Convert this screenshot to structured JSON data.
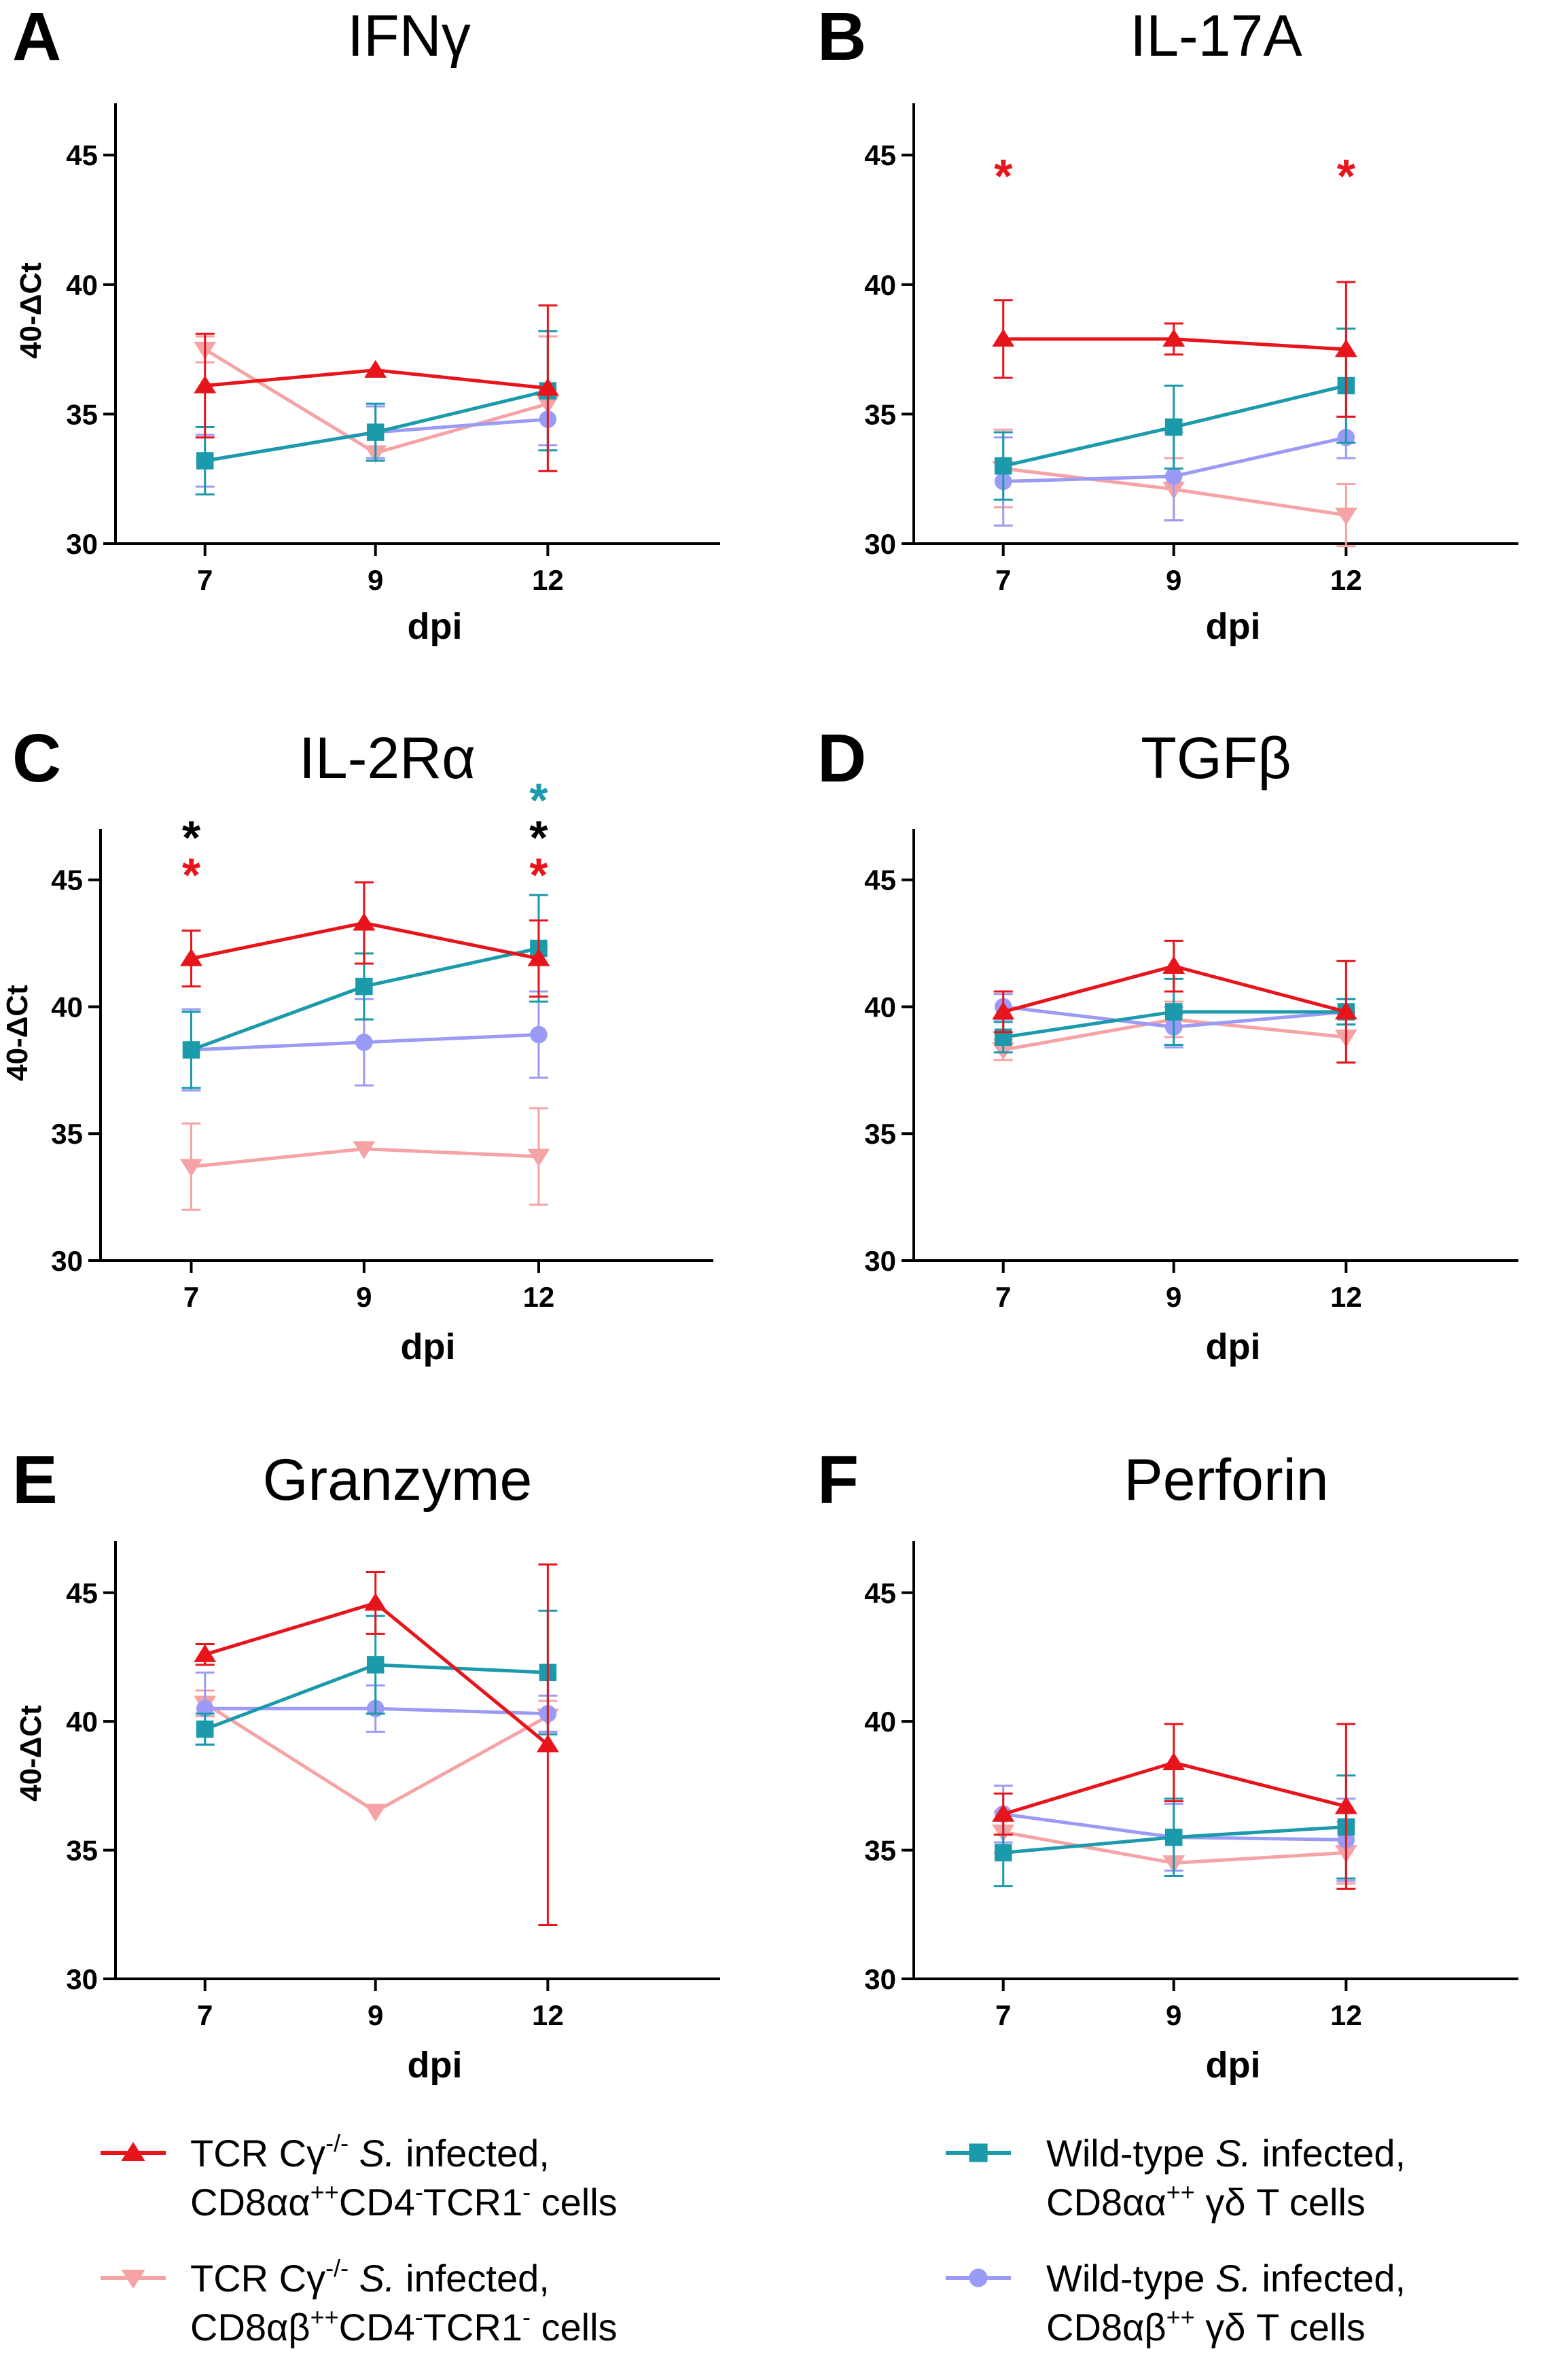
{
  "colors": {
    "s1": "#e8141b",
    "s2": "#f6a3a6",
    "s3": "#1a9aaa",
    "s4": "#9b9bf5"
  },
  "chart_data": [
    {
      "type": "line",
      "letter": "A",
      "title": "IFNγ",
      "xlabel": "dpi",
      "ylabel": "40-ΔCt",
      "categories": [
        "7",
        "9",
        "12"
      ],
      "ylim": [
        30,
        47
      ],
      "yticks": [
        "30",
        "35",
        "40",
        "45"
      ],
      "series": [
        {
          "name": "s1",
          "values": [
            36.1,
            36.7,
            36.0
          ],
          "err": [
            2.0,
            0.0,
            3.2
          ]
        },
        {
          "name": "s2",
          "values": [
            37.5,
            33.5,
            35.4
          ],
          "err": [
            0.5,
            0.0,
            2.6
          ]
        },
        {
          "name": "s3",
          "values": [
            33.2,
            34.3,
            35.9
          ],
          "err": [
            1.3,
            1.1,
            2.3
          ]
        },
        {
          "name": "s4",
          "values": [
            33.2,
            34.3,
            34.8
          ],
          "err": [
            1.0,
            1.0,
            1.0
          ]
        }
      ],
      "stars": []
    },
    {
      "type": "line",
      "letter": "B",
      "title": "IL-17A",
      "xlabel": "dpi",
      "ylabel": "",
      "categories": [
        "7",
        "9",
        "12"
      ],
      "ylim": [
        30,
        47
      ],
      "yticks": [
        "30",
        "35",
        "40",
        "45"
      ],
      "series": [
        {
          "name": "s1",
          "values": [
            37.9,
            37.9,
            37.5
          ],
          "err": [
            1.5,
            0.6,
            2.6
          ]
        },
        {
          "name": "s2",
          "values": [
            32.9,
            32.1,
            31.1
          ],
          "err": [
            1.5,
            1.2,
            1.2
          ]
        },
        {
          "name": "s3",
          "values": [
            33.0,
            34.5,
            36.1
          ],
          "err": [
            1.3,
            1.6,
            2.2
          ]
        },
        {
          "name": "s4",
          "values": [
            32.4,
            32.6,
            34.1
          ],
          "err": [
            1.7,
            1.7,
            0.8
          ]
        }
      ],
      "stars": [
        {
          "cat": 0,
          "color": "s1",
          "text": "*"
        },
        {
          "cat": 2,
          "color": "s1",
          "text": "*"
        }
      ]
    },
    {
      "type": "line",
      "letter": "C",
      "title": "IL-2Rα",
      "xlabel": "dpi",
      "ylabel": "40-ΔCt",
      "categories": [
        "7",
        "9",
        "12"
      ],
      "ylim": [
        30,
        47
      ],
      "yticks": [
        "30",
        "35",
        "40",
        "45"
      ],
      "series": [
        {
          "name": "s1",
          "values": [
            41.9,
            43.3,
            41.9
          ],
          "err": [
            1.1,
            1.6,
            1.5
          ]
        },
        {
          "name": "s2",
          "values": [
            33.7,
            34.4,
            34.1
          ],
          "err": [
            1.7,
            0.0,
            1.9
          ]
        },
        {
          "name": "s3",
          "values": [
            38.3,
            40.8,
            42.3
          ],
          "err": [
            1.5,
            1.3,
            2.1
          ]
        },
        {
          "name": "s4",
          "values": [
            38.3,
            38.6,
            38.9
          ],
          "err": [
            1.6,
            1.7,
            1.7
          ]
        }
      ],
      "stars": [
        {
          "cat": 0,
          "color": "black",
          "text": "*"
        },
        {
          "cat": 0,
          "color": "s1",
          "text": "*"
        },
        {
          "cat": 2,
          "color": "s3",
          "text": "*"
        },
        {
          "cat": 2,
          "color": "black",
          "text": "*"
        },
        {
          "cat": 2,
          "color": "s1",
          "text": "*"
        }
      ]
    },
    {
      "type": "line",
      "letter": "D",
      "title": "TGFβ",
      "xlabel": "dpi",
      "ylabel": "",
      "categories": [
        "7",
        "9",
        "12"
      ],
      "ylim": [
        30,
        47
      ],
      "yticks": [
        "30",
        "35",
        "40",
        "45"
      ],
      "series": [
        {
          "name": "s1",
          "values": [
            39.8,
            41.6,
            39.8
          ],
          "err": [
            0.8,
            1.0,
            2.0
          ]
        },
        {
          "name": "s2",
          "values": [
            38.3,
            39.5,
            38.8
          ],
          "err": [
            0.4,
            0.7,
            1.0
          ]
        },
        {
          "name": "s3",
          "values": [
            38.8,
            39.8,
            39.8
          ],
          "err": [
            0.6,
            1.3,
            0.5
          ]
        },
        {
          "name": "s4",
          "values": [
            40.0,
            39.2,
            39.8
          ],
          "err": [
            0.5,
            0.8,
            0.5
          ]
        }
      ],
      "stars": []
    },
    {
      "type": "line",
      "letter": "E",
      "title": "Granzyme",
      "xlabel": "dpi",
      "ylabel": "40-ΔCt",
      "categories": [
        "7",
        "9",
        "12"
      ],
      "ylim": [
        30,
        47
      ],
      "yticks": [
        "30",
        "35",
        "40",
        "45"
      ],
      "series": [
        {
          "name": "s1",
          "values": [
            42.6,
            44.6,
            39.1
          ],
          "err": [
            0.4,
            1.2,
            7.0
          ]
        },
        {
          "name": "s2",
          "values": [
            40.7,
            36.5,
            40.2
          ],
          "err": [
            0.5,
            0.0,
            0.6
          ]
        },
        {
          "name": "s3",
          "values": [
            39.7,
            42.2,
            41.9
          ],
          "err": [
            0.6,
            1.9,
            2.4
          ]
        },
        {
          "name": "s4",
          "values": [
            40.5,
            40.5,
            40.3
          ],
          "err": [
            1.4,
            0.9,
            0.7
          ]
        }
      ],
      "stars": []
    },
    {
      "type": "line",
      "letter": "F",
      "title": "Perforin",
      "xlabel": "dpi",
      "ylabel": "",
      "categories": [
        "7",
        "9",
        "12"
      ],
      "ylim": [
        30,
        47
      ],
      "yticks": [
        "30",
        "35",
        "40",
        "45"
      ],
      "series": [
        {
          "name": "s1",
          "values": [
            36.4,
            38.4,
            36.7
          ],
          "err": [
            0.8,
            1.5,
            3.2
          ]
        },
        {
          "name": "s2",
          "values": [
            35.7,
            34.5,
            34.9
          ],
          "err": [
            0.8,
            0.0,
            1.2
          ]
        },
        {
          "name": "s3",
          "values": [
            34.9,
            35.5,
            35.9
          ],
          "err": [
            1.3,
            1.5,
            2.0
          ]
        },
        {
          "name": "s4",
          "values": [
            36.4,
            35.5,
            35.4
          ],
          "err": [
            1.1,
            1.3,
            1.6
          ]
        }
      ],
      "stars": []
    }
  ],
  "legend": [
    {
      "series": "s1",
      "marker": "triangle-up",
      "line1_pre": "TCR Cγ",
      "line1_sup": "-/-",
      "line1_italic": " S.",
      "line1_post": " infected,",
      "line2_a": "CD8αα",
      "line2_sup1": "++",
      "line2_b": "CD4",
      "line2_sup2": "-",
      "line2_c": "TCR1",
      "line2_sup3": "-",
      "line2_d": " cells"
    },
    {
      "series": "s2",
      "marker": "triangle-down",
      "line1_pre": "TCR Cγ",
      "line1_sup": "-/-",
      "line1_italic": " S.",
      "line1_post": " infected,",
      "line2_a": "CD8αβ",
      "line2_sup1": "++",
      "line2_b": "CD4",
      "line2_sup2": "-",
      "line2_c": "TCR1",
      "line2_sup3": "-",
      "line2_d": " cells"
    },
    {
      "series": "s3",
      "marker": "square",
      "line1_pre": "Wild-type",
      "line1_sup": "",
      "line1_italic": " S.",
      "line1_post": " infected,",
      "line2_a": "CD8αα",
      "line2_sup1": "++",
      "line2_b": " γδ T cells",
      "line2_sup2": "",
      "line2_c": "",
      "line2_sup3": "",
      "line2_d": ""
    },
    {
      "series": "s4",
      "marker": "circle",
      "line1_pre": "Wild-type",
      "line1_sup": "",
      "line1_italic": " S.",
      "line1_post": " infected,",
      "line2_a": "CD8αβ",
      "line2_sup1": "++",
      "line2_b": " γδ T cells",
      "line2_sup2": "",
      "line2_c": "",
      "line2_sup3": "",
      "line2_d": ""
    }
  ]
}
